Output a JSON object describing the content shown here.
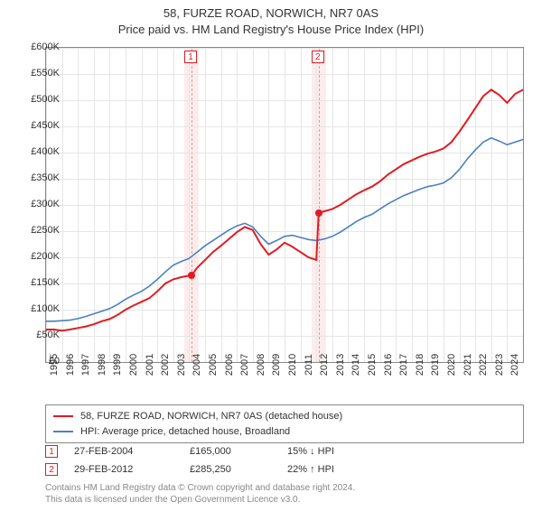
{
  "title_line1": "58, FURZE ROAD, NORWICH, NR7 0AS",
  "title_line2": "Price paid vs. HM Land Registry's House Price Index (HPI)",
  "chart": {
    "type": "line",
    "background_color": "#ffffff",
    "grid_color": "#e6e6e6",
    "axis_color": "#888888",
    "ylim": [
      0,
      600000
    ],
    "ytick_step": 50000,
    "ylabels": [
      "£0",
      "£50K",
      "£100K",
      "£150K",
      "£200K",
      "£250K",
      "£300K",
      "£350K",
      "£400K",
      "£450K",
      "£500K",
      "£550K",
      "£600K"
    ],
    "xlim": [
      1995,
      2025
    ],
    "xticks": [
      1995,
      1996,
      1997,
      1998,
      1999,
      2000,
      2001,
      2002,
      2003,
      2004,
      2005,
      2006,
      2007,
      2008,
      2009,
      2010,
      2011,
      2012,
      2013,
      2014,
      2015,
      2016,
      2017,
      2018,
      2019,
      2020,
      2021,
      2022,
      2023,
      2024
    ],
    "series": [
      {
        "name": "property",
        "label": "58, FURZE ROAD, NORWICH, NR7 0AS (detached house)",
        "color": "#e11b22",
        "width": 2,
        "points": [
          [
            1995.0,
            62000
          ],
          [
            1995.5,
            62000
          ],
          [
            1996.0,
            60000
          ],
          [
            1996.5,
            62000
          ],
          [
            1997.0,
            65000
          ],
          [
            1997.5,
            68000
          ],
          [
            1998.0,
            72000
          ],
          [
            1998.5,
            78000
          ],
          [
            1999.0,
            82000
          ],
          [
            1999.5,
            90000
          ],
          [
            2000.0,
            100000
          ],
          [
            2000.5,
            108000
          ],
          [
            2001.0,
            115000
          ],
          [
            2001.5,
            122000
          ],
          [
            2002.0,
            135000
          ],
          [
            2002.5,
            150000
          ],
          [
            2003.0,
            158000
          ],
          [
            2003.5,
            162000
          ],
          [
            2004.0,
            165000
          ],
          [
            2004.15,
            165000
          ],
          [
            2004.5,
            180000
          ],
          [
            2005.0,
            195000
          ],
          [
            2005.5,
            210000
          ],
          [
            2006.0,
            222000
          ],
          [
            2006.5,
            235000
          ],
          [
            2007.0,
            248000
          ],
          [
            2007.5,
            258000
          ],
          [
            2008.0,
            252000
          ],
          [
            2008.5,
            225000
          ],
          [
            2009.0,
            205000
          ],
          [
            2009.5,
            215000
          ],
          [
            2010.0,
            228000
          ],
          [
            2010.5,
            220000
          ],
          [
            2011.0,
            210000
          ],
          [
            2011.5,
            200000
          ],
          [
            2012.0,
            195000
          ],
          [
            2012.15,
            285250
          ],
          [
            2012.5,
            288000
          ],
          [
            2013.0,
            292000
          ],
          [
            2013.5,
            300000
          ],
          [
            2014.0,
            310000
          ],
          [
            2014.5,
            320000
          ],
          [
            2015.0,
            328000
          ],
          [
            2015.5,
            335000
          ],
          [
            2016.0,
            345000
          ],
          [
            2016.5,
            358000
          ],
          [
            2017.0,
            368000
          ],
          [
            2017.5,
            378000
          ],
          [
            2018.0,
            385000
          ],
          [
            2018.5,
            392000
          ],
          [
            2019.0,
            398000
          ],
          [
            2019.5,
            402000
          ],
          [
            2020.0,
            408000
          ],
          [
            2020.5,
            420000
          ],
          [
            2021.0,
            440000
          ],
          [
            2021.5,
            462000
          ],
          [
            2022.0,
            485000
          ],
          [
            2022.5,
            508000
          ],
          [
            2023.0,
            520000
          ],
          [
            2023.5,
            510000
          ],
          [
            2024.0,
            495000
          ],
          [
            2024.5,
            512000
          ],
          [
            2025.0,
            520000
          ]
        ]
      },
      {
        "name": "hpi",
        "label": "HPI: Average price, detached house, Broadland",
        "color": "#4a7fc4",
        "width": 1.6,
        "points": [
          [
            1995.0,
            78000
          ],
          [
            1995.5,
            78000
          ],
          [
            1996.0,
            79000
          ],
          [
            1996.5,
            80000
          ],
          [
            1997.0,
            83000
          ],
          [
            1997.5,
            87000
          ],
          [
            1998.0,
            92000
          ],
          [
            1998.5,
            97000
          ],
          [
            1999.0,
            102000
          ],
          [
            1999.5,
            110000
          ],
          [
            2000.0,
            120000
          ],
          [
            2000.5,
            128000
          ],
          [
            2001.0,
            135000
          ],
          [
            2001.5,
            145000
          ],
          [
            2002.0,
            158000
          ],
          [
            2002.5,
            172000
          ],
          [
            2003.0,
            185000
          ],
          [
            2003.5,
            192000
          ],
          [
            2004.0,
            198000
          ],
          [
            2004.5,
            210000
          ],
          [
            2005.0,
            222000
          ],
          [
            2005.5,
            232000
          ],
          [
            2006.0,
            242000
          ],
          [
            2006.5,
            252000
          ],
          [
            2007.0,
            260000
          ],
          [
            2007.5,
            265000
          ],
          [
            2008.0,
            258000
          ],
          [
            2008.5,
            240000
          ],
          [
            2009.0,
            225000
          ],
          [
            2009.5,
            232000
          ],
          [
            2010.0,
            240000
          ],
          [
            2010.5,
            242000
          ],
          [
            2011.0,
            238000
          ],
          [
            2011.5,
            234000
          ],
          [
            2012.0,
            232000
          ],
          [
            2012.5,
            235000
          ],
          [
            2013.0,
            240000
          ],
          [
            2013.5,
            248000
          ],
          [
            2014.0,
            258000
          ],
          [
            2014.5,
            268000
          ],
          [
            2015.0,
            276000
          ],
          [
            2015.5,
            282000
          ],
          [
            2016.0,
            292000
          ],
          [
            2016.5,
            302000
          ],
          [
            2017.0,
            310000
          ],
          [
            2017.5,
            318000
          ],
          [
            2018.0,
            324000
          ],
          [
            2018.5,
            330000
          ],
          [
            2019.0,
            335000
          ],
          [
            2019.5,
            338000
          ],
          [
            2020.0,
            342000
          ],
          [
            2020.5,
            352000
          ],
          [
            2021.0,
            368000
          ],
          [
            2021.5,
            388000
          ],
          [
            2022.0,
            405000
          ],
          [
            2022.5,
            420000
          ],
          [
            2023.0,
            428000
          ],
          [
            2023.5,
            422000
          ],
          [
            2024.0,
            415000
          ],
          [
            2024.5,
            420000
          ],
          [
            2025.0,
            425000
          ]
        ]
      }
    ],
    "sale_points": [
      {
        "year": 2004.15,
        "price": 165000,
        "color": "#e11b22"
      },
      {
        "year": 2012.15,
        "price": 285250,
        "color": "#e11b22"
      }
    ],
    "marker_bands": [
      {
        "num": "1",
        "year": 2004.15,
        "band_color": "#fdecec",
        "line_color": "#e59a9e",
        "box_border": "#e11b22",
        "box_text": "#e11b22"
      },
      {
        "num": "2",
        "year": 2012.15,
        "band_color": "#fdecec",
        "line_color": "#e59a9e",
        "box_border": "#e11b22",
        "box_text": "#e11b22"
      }
    ]
  },
  "legend_items": [
    {
      "color": "#e11b22",
      "text": "58, FURZE ROAD, NORWICH, NR7 0AS (detached house)"
    },
    {
      "color": "#4a7fc4",
      "text": "HPI: Average price, detached house, Broadland"
    }
  ],
  "sales": [
    {
      "num": "1",
      "date": "27-FEB-2004",
      "price": "£165,000",
      "diff": "15% ↓ HPI",
      "box_border": "#e11b22",
      "box_text": "#e11b22"
    },
    {
      "num": "2",
      "date": "29-FEB-2012",
      "price": "£285,250",
      "diff": "22% ↑ HPI",
      "box_border": "#e11b22",
      "box_text": "#e11b22"
    }
  ],
  "attribution_line1": "Contains HM Land Registry data © Crown copyright and database right 2024.",
  "attribution_line2": "This data is licensed under the Open Government Licence v3.0."
}
